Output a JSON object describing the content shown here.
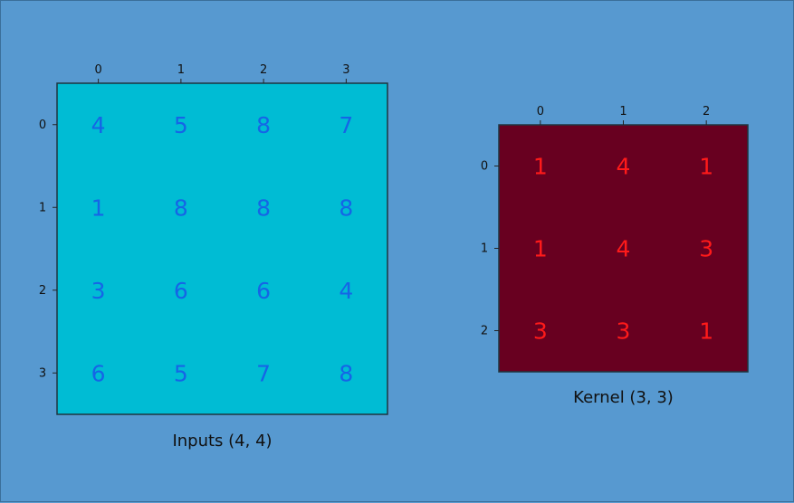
{
  "background_color": "#5799d0",
  "chart_data": [
    {
      "type": "heatmap",
      "caption": "Inputs (4, 4)",
      "x_tick_labels": [
        "0",
        "1",
        "2",
        "3"
      ],
      "y_tick_labels": [
        "0",
        "1",
        "2",
        "3"
      ],
      "matrix": [
        [
          4,
          5,
          8,
          7
        ],
        [
          1,
          8,
          8,
          8
        ],
        [
          3,
          6,
          6,
          4
        ],
        [
          6,
          5,
          7,
          8
        ]
      ],
      "fill_color": "#00bcd4",
      "text_color": "#1565e6",
      "grid": false
    },
    {
      "type": "heatmap",
      "caption": "Kernel (3, 3)",
      "x_tick_labels": [
        "0",
        "1",
        "2"
      ],
      "y_tick_labels": [
        "0",
        "1",
        "2"
      ],
      "matrix": [
        [
          1,
          4,
          1
        ],
        [
          1,
          4,
          3
        ],
        [
          3,
          3,
          1
        ]
      ],
      "fill_color": "#680020",
      "text_color": "#ff1a1a",
      "grid": false
    }
  ]
}
